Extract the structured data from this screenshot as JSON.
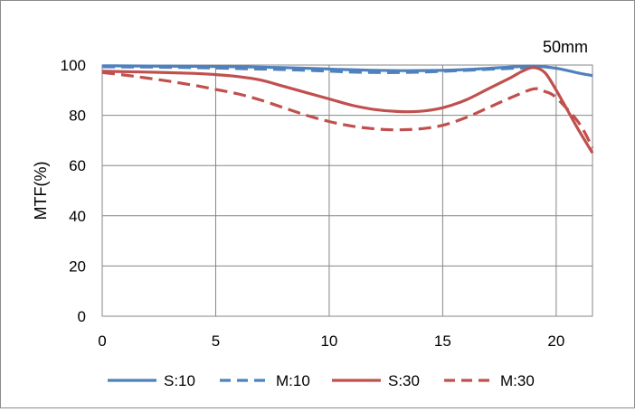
{
  "chart_data": {
    "type": "line",
    "title": "50mm",
    "xlabel": "",
    "ylabel": "MTF(%)",
    "xlim": [
      0,
      21.6
    ],
    "ylim": [
      0,
      100
    ],
    "xticks": [
      0,
      5,
      10,
      15,
      20
    ],
    "yticks": [
      0,
      20,
      40,
      60,
      80,
      100
    ],
    "grid": true,
    "legend_position": "bottom",
    "series": [
      {
        "name": "S:10",
        "color": "#4f81bd",
        "dash": "solid",
        "x": [
          0,
          2,
          4,
          6,
          8,
          10,
          12,
          14,
          16,
          18,
          19,
          20,
          21,
          21.6
        ],
        "y": [
          99.7,
          99.6,
          99.5,
          99.3,
          99.0,
          98.4,
          97.9,
          97.8,
          98.2,
          99.2,
          99.6,
          98.7,
          96.8,
          95.8
        ]
      },
      {
        "name": "M:10",
        "color": "#4f81bd",
        "dash": "dashed",
        "x": [
          0,
          2,
          4,
          6,
          8,
          10,
          11,
          13,
          15,
          17,
          18.5,
          19,
          19.3
        ],
        "y": [
          99.3,
          99.2,
          99.0,
          98.6,
          98.2,
          97.6,
          97.2,
          97.0,
          97.5,
          98.3,
          98.9,
          99.3,
          99.5
        ]
      },
      {
        "name": "S:30",
        "color": "#c0504d",
        "dash": "solid",
        "x": [
          0,
          2,
          4,
          5,
          6,
          7,
          8,
          9,
          10,
          11,
          12,
          13,
          14,
          15,
          16,
          17,
          18,
          18.5,
          19,
          19.5,
          20,
          20.5,
          21,
          21.6
        ],
        "y": [
          97.5,
          97.2,
          96.7,
          96.2,
          95.4,
          94.0,
          91.5,
          89.0,
          86.5,
          84.0,
          82.3,
          81.5,
          81.6,
          83.0,
          86.0,
          90.5,
          95.0,
          97.5,
          99.0,
          97.0,
          90.0,
          82.0,
          74.0,
          65.0
        ]
      },
      {
        "name": "M:30",
        "color": "#c0504d",
        "dash": "dashed",
        "x": [
          0,
          1,
          2,
          3,
          4,
          5,
          6,
          7,
          8,
          9,
          10,
          11,
          12,
          13,
          14,
          15,
          16,
          17,
          18,
          19,
          19.5,
          20,
          21,
          21.6
        ],
        "y": [
          97.0,
          96.0,
          94.8,
          93.5,
          92.0,
          90.3,
          88.5,
          86.0,
          83.0,
          80.0,
          77.5,
          75.7,
          74.6,
          74.2,
          74.6,
          76.0,
          79.0,
          83.0,
          87.0,
          90.5,
          89.5,
          87.0,
          77.0,
          67.0
        ]
      }
    ]
  }
}
